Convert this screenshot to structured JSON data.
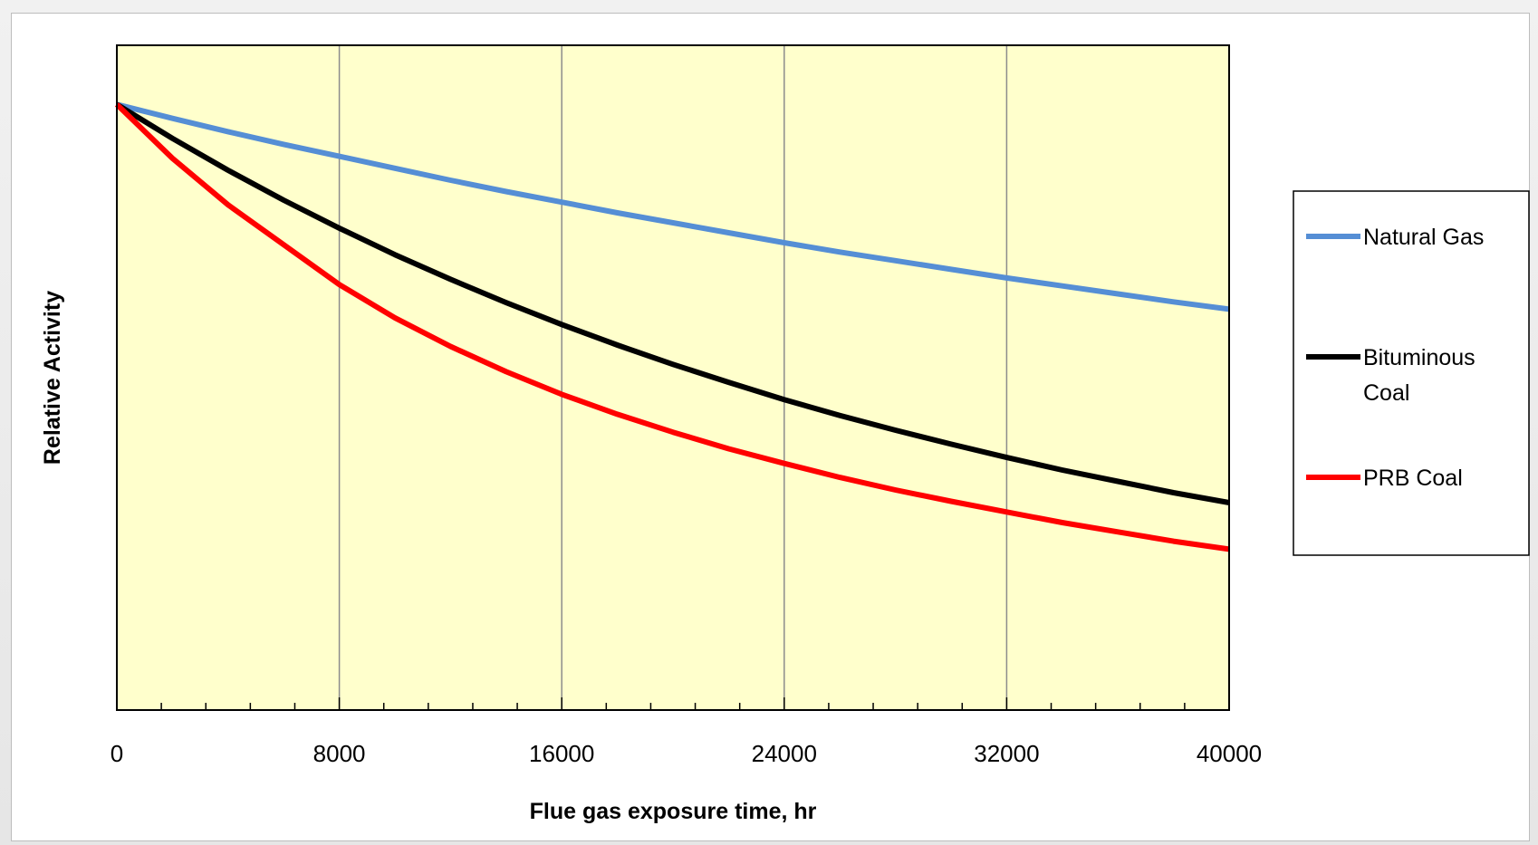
{
  "chart_data": {
    "type": "line",
    "xlabel": "Flue gas exposure time, hr",
    "ylabel": "Relative Activity",
    "xlim": [
      0,
      40000
    ],
    "x_ticks": [
      0,
      8000,
      16000,
      24000,
      32000,
      40000
    ],
    "x_minor_step": 1600,
    "ylim": [
      0,
      1.0
    ],
    "y_tick_labels_shown": false,
    "grid": "vertical major lines",
    "plot_background": "#ffffcc",
    "legend_position": "right",
    "x": [
      0,
      2000,
      4000,
      6000,
      8000,
      10000,
      12000,
      14000,
      16000,
      18000,
      20000,
      22000,
      24000,
      26000,
      28000,
      30000,
      32000,
      34000,
      36000,
      38000,
      40000
    ],
    "series": [
      {
        "name": "Natural Gas",
        "legend_lines": [
          "Natural Gas"
        ],
        "color": "#558ed5",
        "values": [
          0.911,
          0.89,
          0.87,
          0.851,
          0.833,
          0.815,
          0.797,
          0.78,
          0.764,
          0.748,
          0.733,
          0.718,
          0.703,
          0.689,
          0.676,
          0.663,
          0.65,
          0.638,
          0.626,
          0.614,
          0.603
        ]
      },
      {
        "name": "Bituminous Coal",
        "legend_lines": [
          "Bituminous",
          "Coal"
        ],
        "color": "#000000",
        "values": [
          0.911,
          0.86,
          0.812,
          0.767,
          0.725,
          0.685,
          0.648,
          0.613,
          0.58,
          0.549,
          0.52,
          0.493,
          0.467,
          0.443,
          0.421,
          0.4,
          0.38,
          0.361,
          0.344,
          0.327,
          0.312
        ]
      },
      {
        "name": "PRB Coal",
        "legend_lines": [
          "PRB Coal"
        ],
        "color": "#ff0000",
        "values": [
          0.911,
          0.83,
          0.76,
          0.7,
          0.64,
          0.59,
          0.547,
          0.509,
          0.475,
          0.445,
          0.418,
          0.393,
          0.371,
          0.35,
          0.331,
          0.314,
          0.298,
          0.282,
          0.268,
          0.254,
          0.242
        ]
      }
    ]
  }
}
